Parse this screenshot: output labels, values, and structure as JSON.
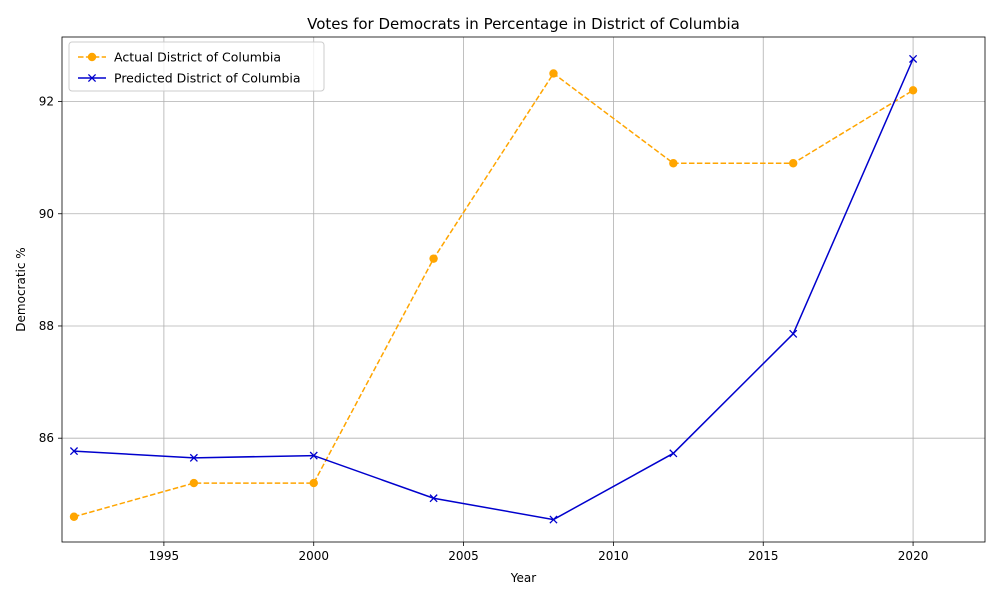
{
  "chart_data": {
    "type": "line",
    "title": "Votes for Democrats in Percentage in District of Columbia",
    "xlabel": "Year",
    "ylabel": "Democratic %",
    "xlim": [
      1991.6,
      2022.4
    ],
    "ylim": [
      84.15,
      93.15
    ],
    "xticks": [
      1995,
      2000,
      2005,
      2010,
      2015,
      2020
    ],
    "yticks": [
      86,
      88,
      90,
      92
    ],
    "grid": true,
    "legend_position": "top-left",
    "x": [
      1992,
      1996,
      2000,
      2004,
      2008,
      2012,
      2016,
      2020
    ],
    "series": [
      {
        "name": "Actual District of Columbia",
        "values": [
          84.6,
          85.2,
          85.2,
          89.2,
          92.5,
          90.9,
          90.9,
          92.2
        ],
        "color": "#FFA500",
        "line_style": "dashed",
        "marker": "circle"
      },
      {
        "name": "Predicted District of Columbia",
        "values": [
          85.77,
          85.65,
          85.69,
          84.93,
          84.55,
          85.73,
          87.86,
          92.76
        ],
        "color": "#0000CD",
        "line_style": "solid",
        "marker": "x"
      }
    ]
  }
}
